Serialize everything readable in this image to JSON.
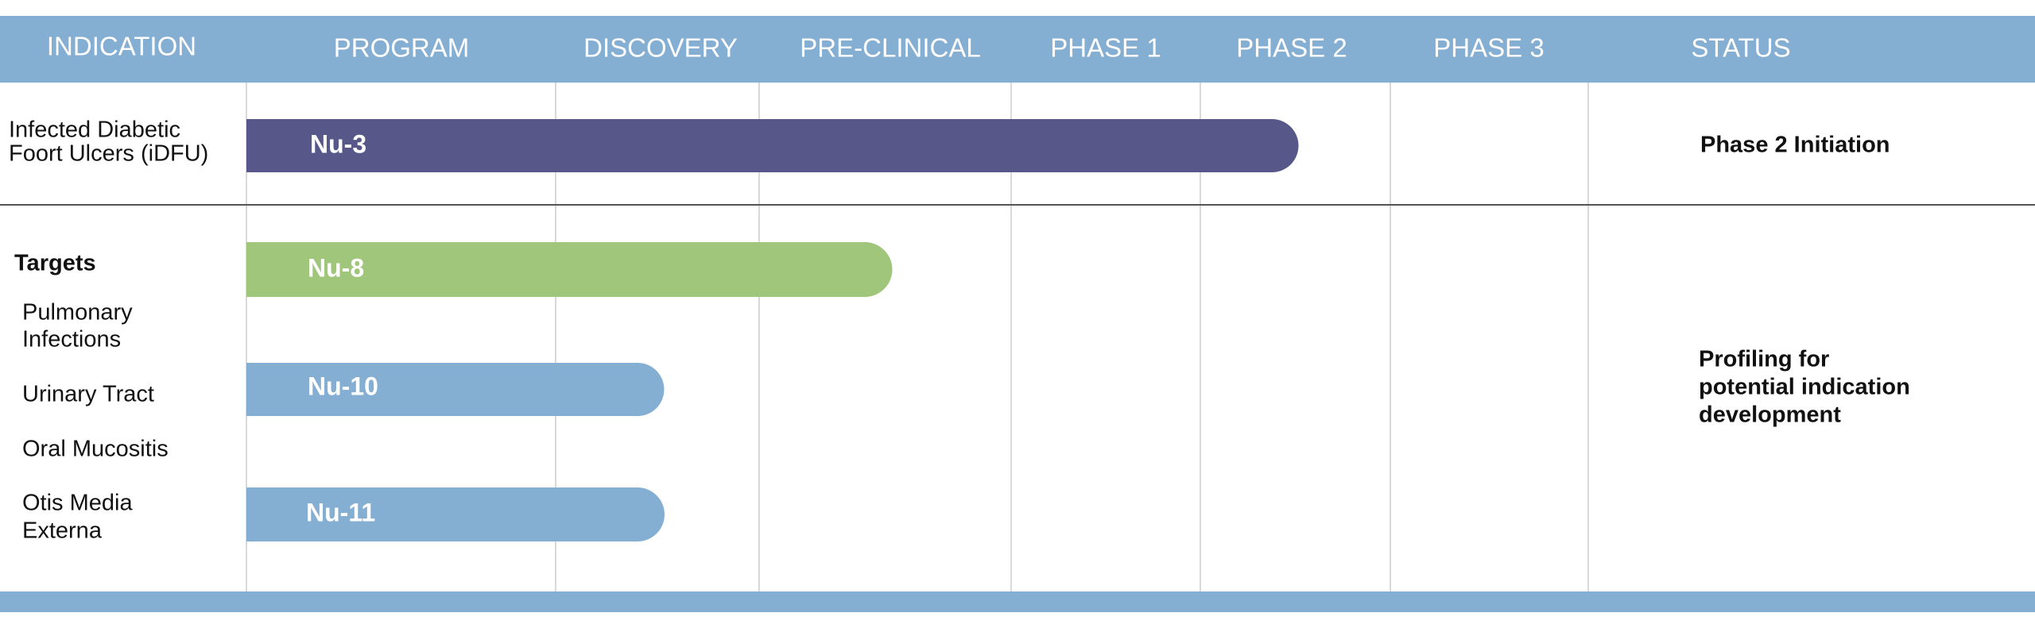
{
  "header": [
    "INDICATION",
    "PROGRAM",
    "DISCOVERY",
    "PRE-CLINICAL",
    "PHASE 1",
    "PHASE 2",
    "PHASE 3",
    "STATUS"
  ],
  "rows": [
    {
      "indication": [
        "Infected Diabetic",
        "Foort Ulcers (iDFU)"
      ],
      "programs": [
        "Nu-3"
      ],
      "status": [
        "Phase 2 Initiation"
      ]
    },
    {
      "indication_title": "Targets",
      "targets": [
        [
          "Pulmonary",
          "Infections"
        ],
        [
          "Urinary Tract"
        ],
        [
          "Oral Mucositis"
        ],
        [
          "Otis Media",
          "Externa"
        ]
      ],
      "programs": [
        "Nu-8",
        "Nu-10",
        "Nu-11"
      ],
      "status": [
        "Profiling for",
        "potential indication",
        "development"
      ]
    }
  ]
}
